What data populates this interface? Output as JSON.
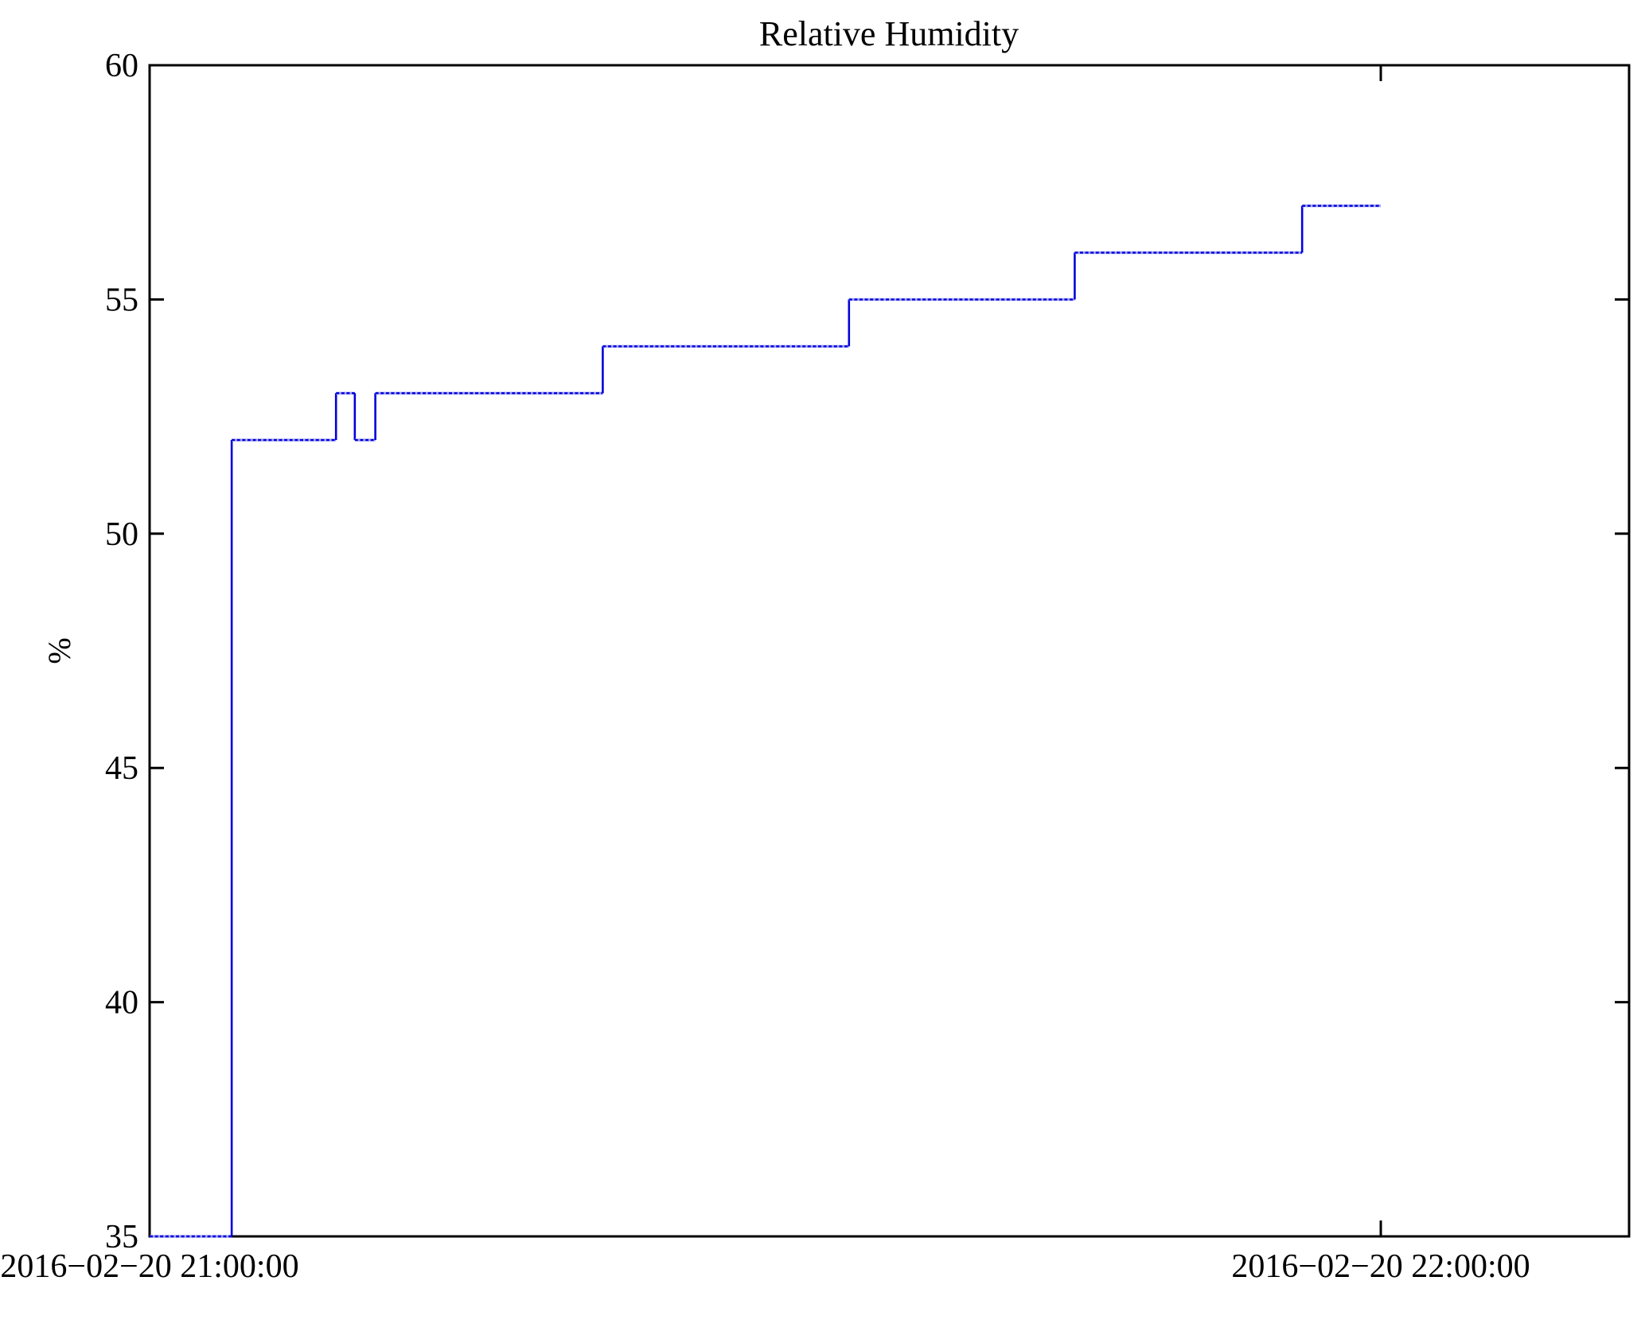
{
  "figure": {
    "background_color": "#ffffff",
    "axis_color": "#000000",
    "text_color": "#000000"
  },
  "chart_data": {
    "type": "line",
    "step_mode": "step-post",
    "title": "Relative Humidity",
    "ylabel": "%",
    "xlabel": "",
    "grid": false,
    "legend": null,
    "line_color": "#0101dd",
    "line_underlay_color": "#a3a3f2",
    "ylim": [
      35,
      60
    ],
    "yticks": [
      35,
      40,
      45,
      50,
      55,
      60
    ],
    "xlim_seconds": [
      0,
      4326
    ],
    "xticks": [
      {
        "seconds": 0,
        "label": "2016−02−20 21:00:00"
      },
      {
        "seconds": 3600,
        "label": "2016−02−20 22:00:00"
      }
    ],
    "series": [
      {
        "name": "relative-humidity",
        "unit": "%",
        "points": [
          {
            "time": "2016-02-20 21:00:00",
            "seconds": 0,
            "value": 35
          },
          {
            "time": "2016-02-20 21:04:00",
            "seconds": 240,
            "value": 52
          },
          {
            "time": "2016-02-20 21:09:05",
            "seconds": 545,
            "value": 53
          },
          {
            "time": "2016-02-20 21:10:00",
            "seconds": 600,
            "value": 52
          },
          {
            "time": "2016-02-20 21:11:00",
            "seconds": 660,
            "value": 53
          },
          {
            "time": "2016-02-20 21:22:05",
            "seconds": 1325,
            "value": 54
          },
          {
            "time": "2016-02-20 21:34:05",
            "seconds": 2045,
            "value": 55
          },
          {
            "time": "2016-02-20 21:45:05",
            "seconds": 2705,
            "value": 56
          },
          {
            "time": "2016-02-20 21:56:10",
            "seconds": 3370,
            "value": 57
          },
          {
            "time": "2016-02-20 22:00:00",
            "seconds": 3600,
            "value": 57
          }
        ]
      }
    ]
  }
}
